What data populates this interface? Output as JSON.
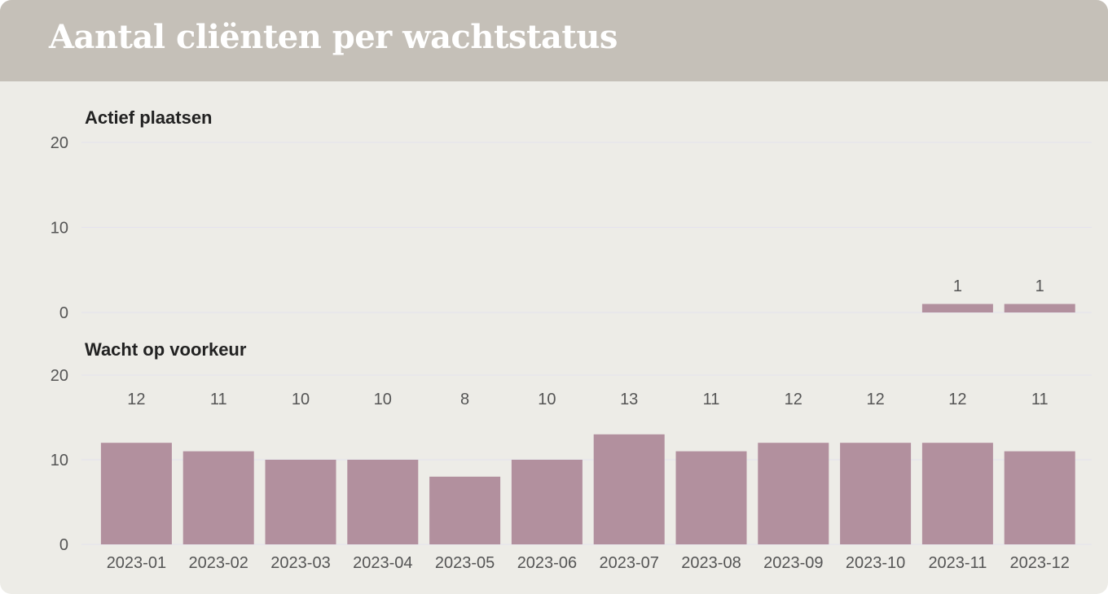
{
  "header": {
    "title": "Aantal cliënten per wachtstatus"
  },
  "colors": {
    "bar": "#b2909e",
    "header_bg": "#c5c0b8",
    "card_bg": "#edece7"
  },
  "chart_data": [
    {
      "type": "bar",
      "title": "Actief plaatsen",
      "categories": [
        "2023-01",
        "2023-02",
        "2023-03",
        "2023-04",
        "2023-05",
        "2023-06",
        "2023-07",
        "2023-08",
        "2023-09",
        "2023-10",
        "2023-11",
        "2023-12"
      ],
      "values": [
        0,
        0,
        0,
        0,
        0,
        0,
        0,
        0,
        0,
        0,
        1,
        1
      ],
      "y_ticks": [
        0,
        10,
        20
      ],
      "ylim": [
        0,
        20
      ],
      "grid": true
    },
    {
      "type": "bar",
      "title": "Wacht op voorkeur",
      "categories": [
        "2023-01",
        "2023-02",
        "2023-03",
        "2023-04",
        "2023-05",
        "2023-06",
        "2023-07",
        "2023-08",
        "2023-09",
        "2023-10",
        "2023-11",
        "2023-12"
      ],
      "values": [
        12,
        11,
        10,
        10,
        8,
        10,
        13,
        11,
        12,
        12,
        12,
        11
      ],
      "y_ticks": [
        0,
        10,
        20
      ],
      "ylim": [
        0,
        20
      ],
      "grid": true
    }
  ]
}
